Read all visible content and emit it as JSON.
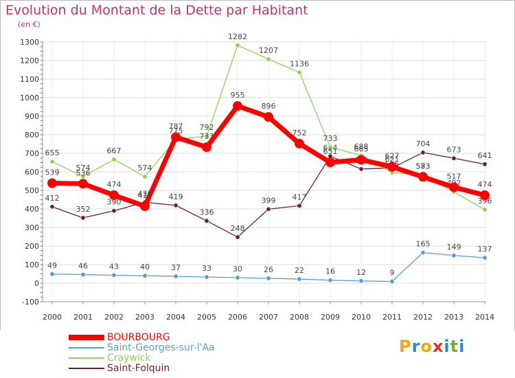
{
  "chart_data": {
    "type": "line",
    "title": "Evolution du Montant de la Dette par Habitant",
    "subtitle": "(en €)",
    "x": [
      "2000",
      "2001",
      "2002",
      "2003",
      "2004",
      "2005",
      "2006",
      "2007",
      "2008",
      "2009",
      "2010",
      "2011",
      "2012",
      "2013",
      "2014"
    ],
    "ylim": [
      -100,
      1300
    ],
    "yticks": [
      -100,
      0,
      100,
      200,
      300,
      400,
      500,
      600,
      700,
      800,
      900,
      1000,
      1100,
      1200,
      1300
    ],
    "grid": true,
    "legend_position": "bottom-left",
    "series": [
      {
        "name": "Saint-Folquin",
        "color": "#6b1f2a",
        "values": [
          412,
          352,
          390,
          436,
          419,
          336,
          248,
          399,
          417,
          684,
          615,
          621,
          704,
          673,
          641
        ]
      },
      {
        "name": "Craywick",
        "color": "#8fd14f",
        "values": [
          655,
          574,
          667,
          574,
          775,
          792,
          1282,
          1207,
          1136,
          733,
          688,
          595,
          583,
          492,
          396
        ]
      },
      {
        "name": "Saint-Georges-sur-l'Aa",
        "color": "#5b9bd5",
        "values": [
          49,
          46,
          43,
          40,
          37,
          33,
          30,
          26,
          22,
          16,
          12,
          9,
          165,
          149,
          137
        ]
      },
      {
        "name": "BOURBOURG",
        "color": "#ff0000",
        "values": [
          539,
          536,
          474,
          415,
          787,
          733,
          955,
          896,
          752,
          651,
          665,
          627,
          573,
          517,
          474
        ]
      }
    ]
  },
  "logo": {
    "letters": [
      "P",
      "r",
      "o",
      "x",
      "i",
      "t",
      "i"
    ],
    "colors": [
      "#f2a800",
      "#2a8ad4",
      "#f2a800",
      "#e0312b",
      "#2a8ad4",
      "#6bb42c",
      "#2a8ad4"
    ]
  }
}
